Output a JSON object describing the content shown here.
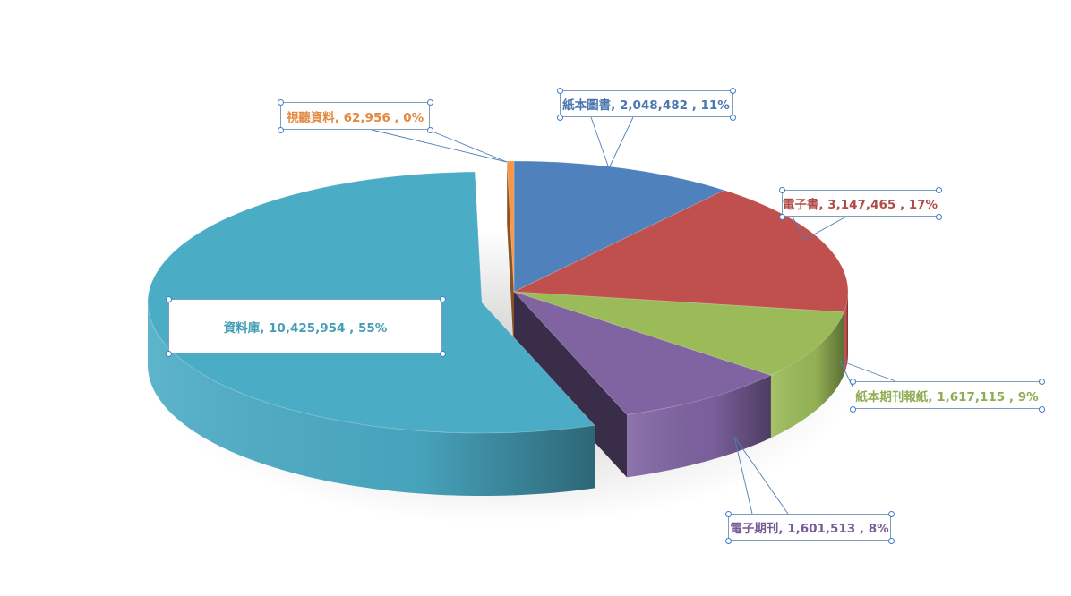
{
  "chart_data": {
    "type": "pie",
    "style": "3d-exploded",
    "slices": [
      {
        "name": "紙本圖書",
        "value": 2048482,
        "percent_label": "11%",
        "color": "#4f81bd"
      },
      {
        "name": "電子書",
        "value": 3147465,
        "percent_label": "17%",
        "color": "#c0504d"
      },
      {
        "name": "紙本期刊報紙",
        "value": 1617115,
        "percent_label": "9%",
        "color": "#9bbb59"
      },
      {
        "name": "電子期刊",
        "value": 1601513,
        "percent_label": "8%",
        "color": "#8064a2"
      },
      {
        "name": "資料庫",
        "value": 10425954,
        "percent_label": "55%",
        "color": "#4bacc6"
      },
      {
        "name": "視聽資料",
        "value": 62956,
        "percent_label": "0%",
        "color": "#f79646"
      }
    ],
    "data_labels": [
      "紙本圖書, 2,048,482 , 11%",
      "電子書, 3,147,465 , 17%",
      "紙本期刊報紙, 1,617,115 , 9%",
      "電子期刊, 1,601,513 , 8%",
      "資料庫, 10,425,954 , 55%",
      "視聽資料, 62,956 , 0%"
    ],
    "legend": "none",
    "grid": false
  }
}
